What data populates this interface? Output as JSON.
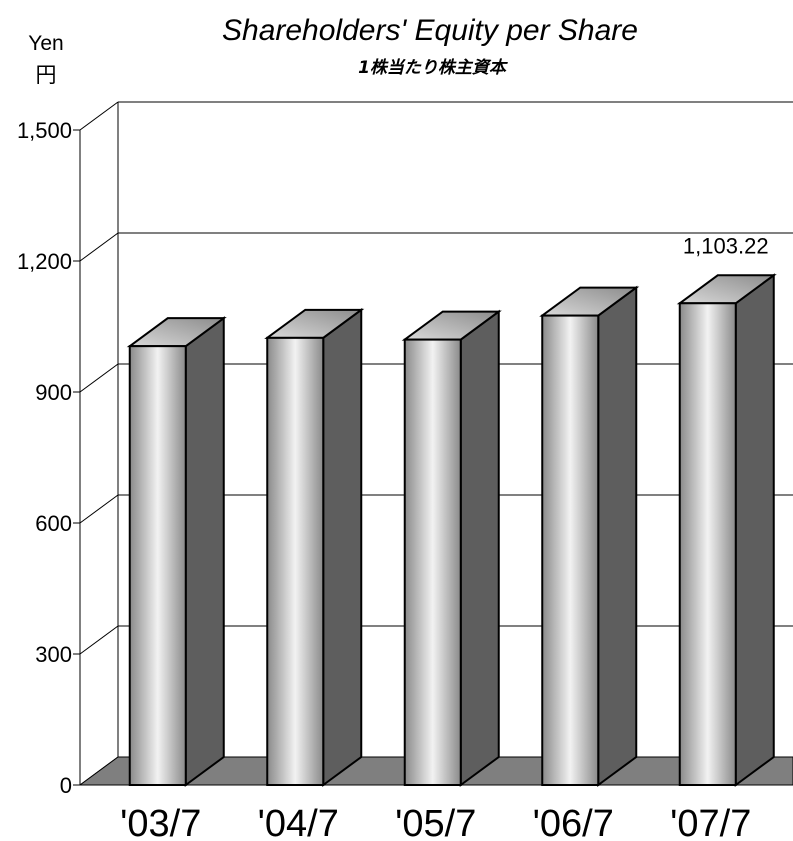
{
  "chart_data": {
    "type": "bar",
    "title": "Shareholders' Equity per Share",
    "subtitle": "1株当たり株主資本",
    "ylabel": "Yen",
    "ylabel_jp": "円",
    "categories": [
      "'03/7",
      "'04/7",
      "'05/7",
      "'06/7",
      "'07/7"
    ],
    "values": [
      1005,
      1024,
      1020,
      1075,
      1103.22
    ],
    "data_labels": [
      "",
      "",
      "",
      "",
      "1,103.22"
    ],
    "ylim": [
      0,
      1500
    ],
    "yticks": [
      0,
      300,
      600,
      900,
      1200,
      1500
    ],
    "ytick_labels": [
      "0",
      "300",
      "600",
      "900",
      "1,200",
      "1,500"
    ],
    "grid": true,
    "style": "3d-bar",
    "colors": {
      "bar_front_light": "#f0f0f0",
      "bar_front_dark": "#8a8a8a",
      "bar_top": "#a8a8a8",
      "bar_side": "#5e5e5e",
      "floor": "#7f7f7f",
      "grid": "#000000"
    }
  }
}
